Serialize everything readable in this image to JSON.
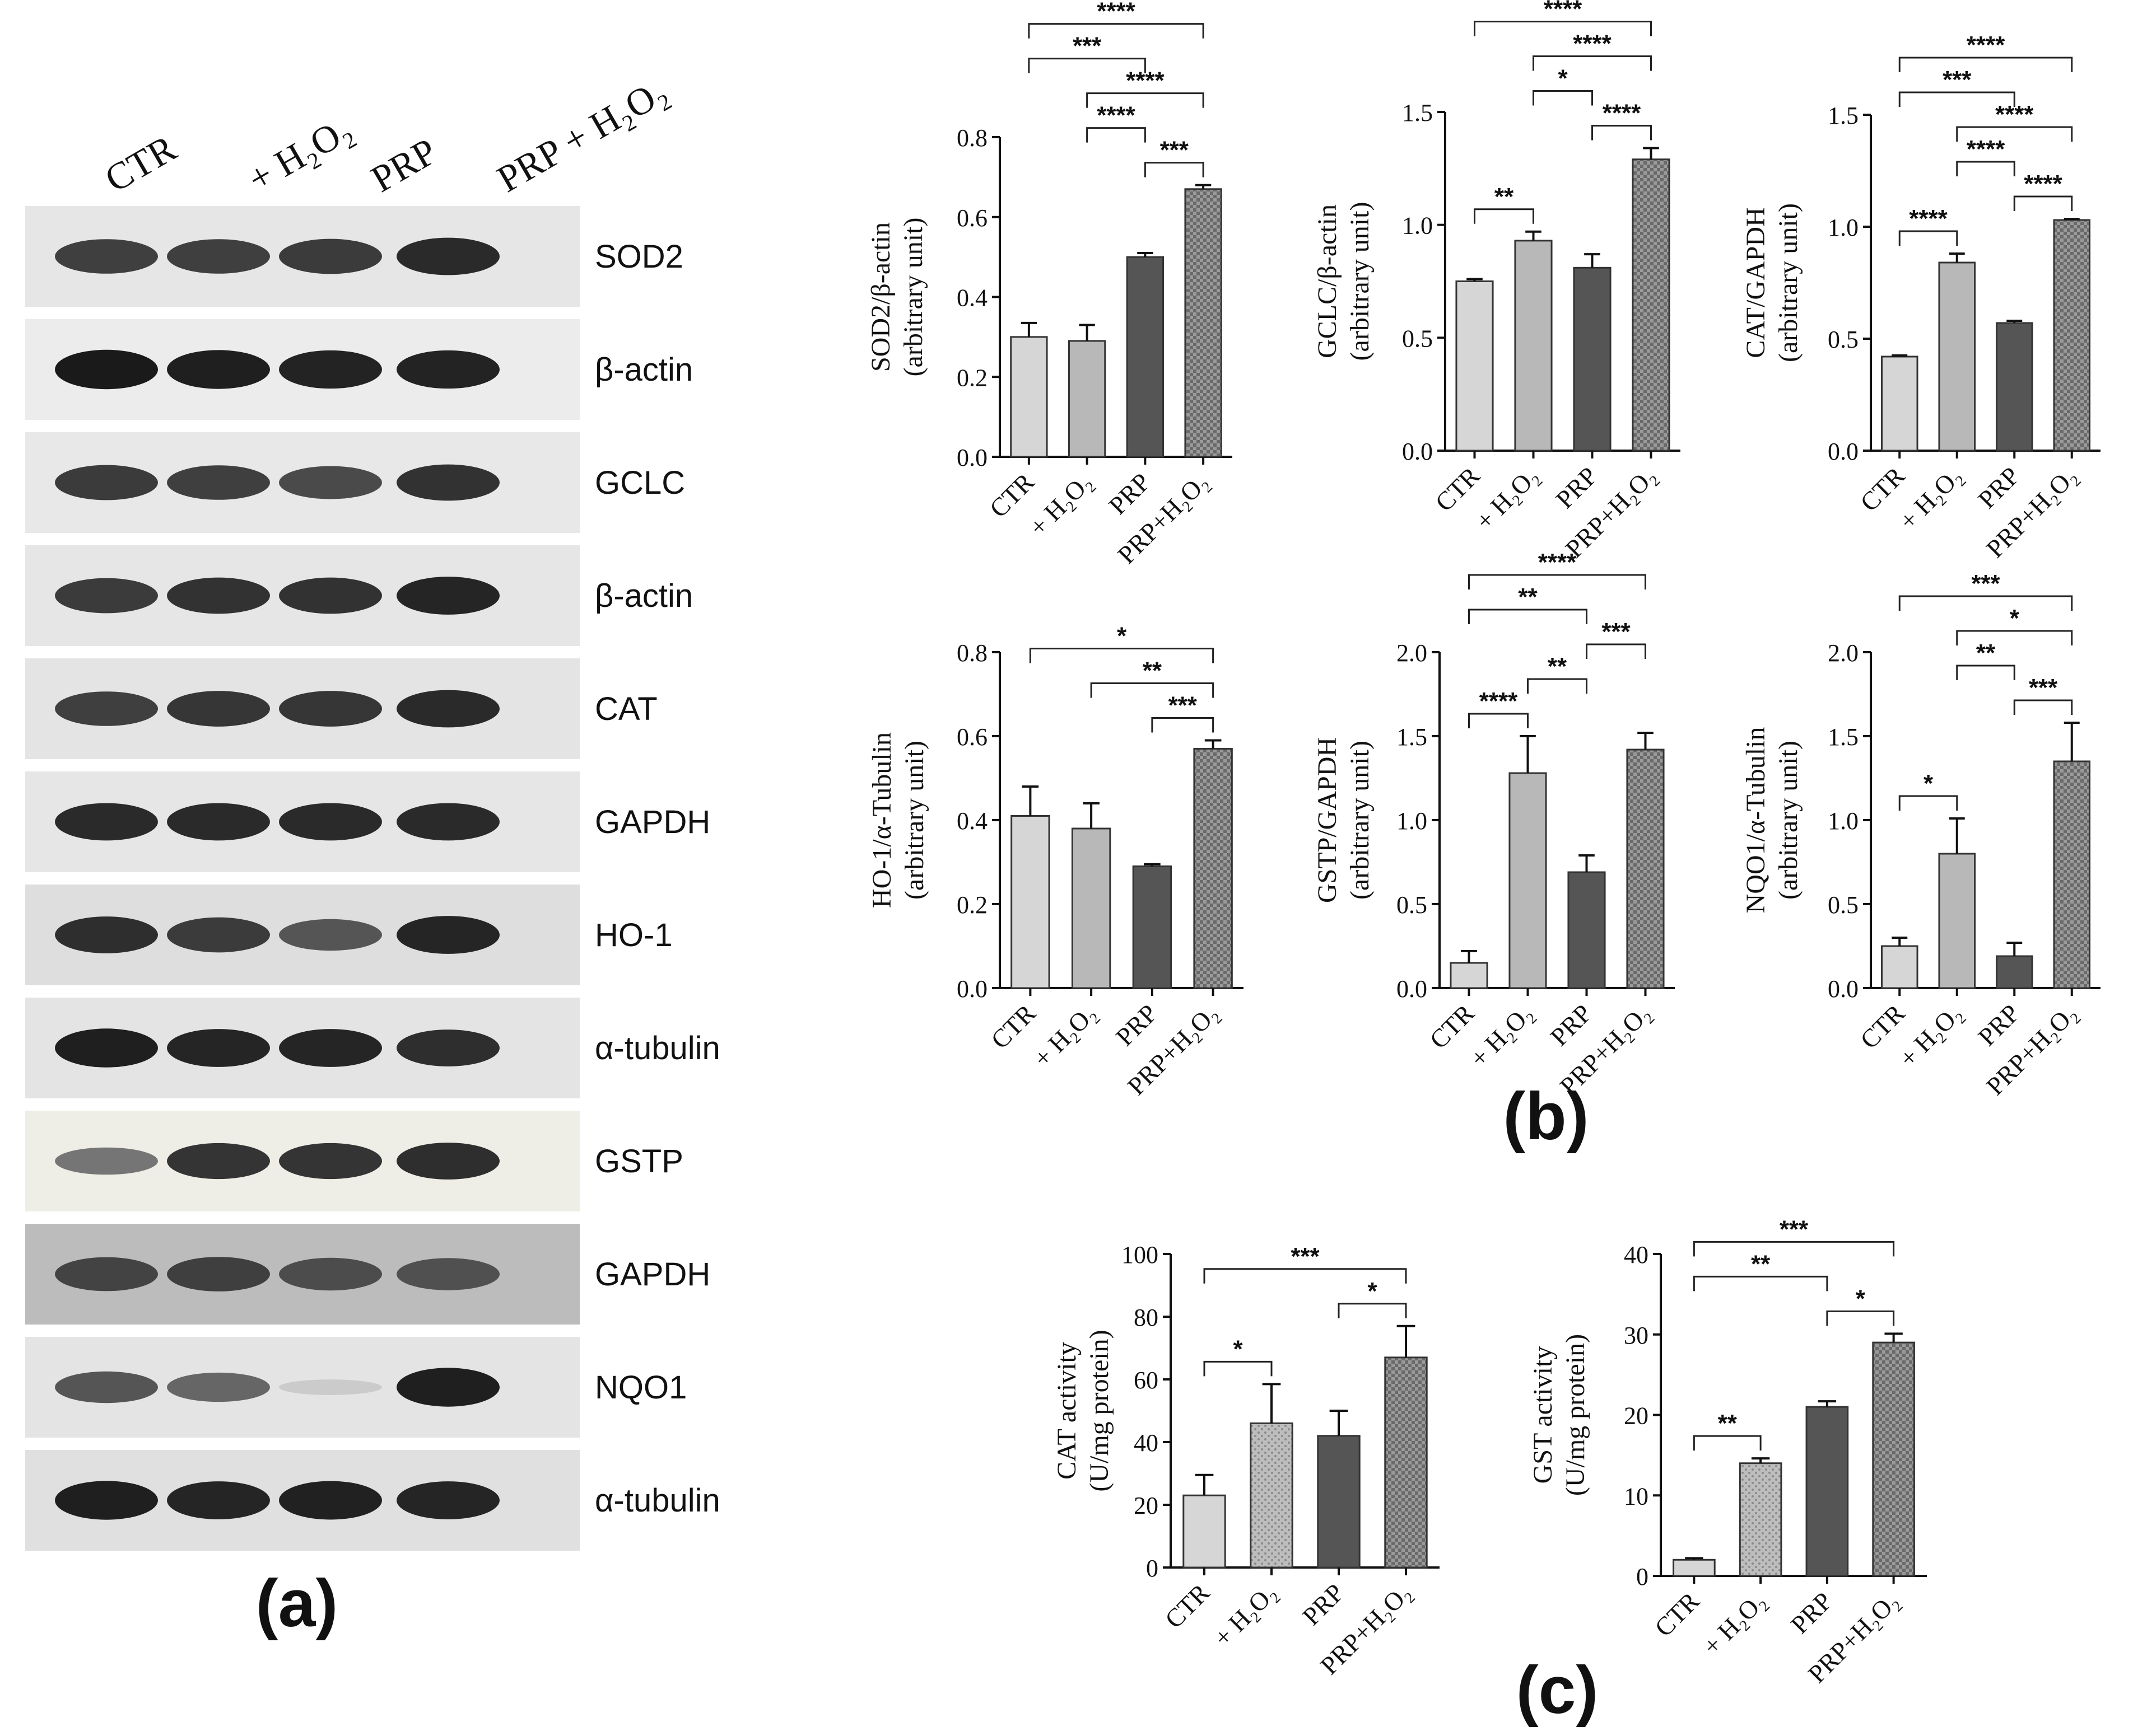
{
  "panel_labels": {
    "a": "(a)",
    "b": "(b)",
    "c": "(c)"
  },
  "blot": {
    "lanes": [
      "CTR",
      "+ H₂O₂",
      "PRP",
      "PRP + H₂O₂"
    ],
    "rows": [
      {
        "label": "SOD2",
        "intensity": [
          0.8,
          0.8,
          0.82,
          0.9
        ]
      },
      {
        "label": "β-actin",
        "intensity": [
          0.97,
          0.95,
          0.93,
          0.93
        ]
      },
      {
        "label": "GCLC",
        "intensity": [
          0.82,
          0.8,
          0.75,
          0.86
        ]
      },
      {
        "label": "β-actin",
        "intensity": [
          0.82,
          0.86,
          0.86,
          0.92
        ]
      },
      {
        "label": "CAT",
        "intensity": [
          0.8,
          0.84,
          0.84,
          0.9
        ]
      },
      {
        "label": "GAPDH",
        "intensity": [
          0.9,
          0.9,
          0.9,
          0.9
        ]
      },
      {
        "label": "HO-1",
        "intensity": [
          0.88,
          0.82,
          0.7,
          0.92
        ]
      },
      {
        "label": "α-tubulin",
        "intensity": [
          0.95,
          0.92,
          0.92,
          0.88
        ]
      },
      {
        "label": "GSTP",
        "intensity": [
          0.55,
          0.85,
          0.85,
          0.88
        ]
      },
      {
        "label": "GAPDH",
        "intensity": [
          0.78,
          0.8,
          0.74,
          0.72
        ]
      },
      {
        "label": "NQO1",
        "intensity": [
          0.7,
          0.62,
          0.15,
          0.95
        ]
      },
      {
        "label": "α-tubulin",
        "intensity": [
          0.95,
          0.92,
          0.94,
          0.92
        ]
      }
    ],
    "row_background": [
      "#e6e6e6",
      "#ececec",
      "#e8e8e8",
      "#e6e6e6",
      "#e4e4e4",
      "#e6e6e6",
      "#dedede",
      "#e4e4e4",
      "#eeeee6",
      "#bcbcbc",
      "#e4e4e4",
      "#e0e0e0"
    ]
  },
  "colors": {
    "bar_fills": [
      "#d6d6d6",
      "#b8b8b8",
      "#555555",
      "#777777"
    ],
    "bar_stroke": "#333333",
    "text": "#111111"
  },
  "chart_data": [
    {
      "type": "bar",
      "id": "sod2",
      "categories": [
        "CTR",
        "+ H₂O₂",
        "PRP",
        "PRP+H₂O₂"
      ],
      "values": [
        0.3,
        0.29,
        0.5,
        0.67
      ],
      "errors": [
        0.035,
        0.04,
        0.01,
        0.01
      ],
      "ylabel": [
        "SOD2/β-actin",
        "(arbitrary unit)"
      ],
      "ylim": [
        0,
        0.8
      ],
      "yticks": [
        0.0,
        0.2,
        0.4,
        0.6,
        0.8
      ],
      "tick_labels": [
        "0.0",
        "0.2",
        "0.4",
        "0.6",
        "0.8"
      ],
      "brackets": [
        {
          "from": 0,
          "to": 3,
          "label": "****"
        },
        {
          "from": 1,
          "to": 3,
          "label": "****"
        },
        {
          "from": 0,
          "to": 2,
          "label": "***"
        },
        {
          "from": 2,
          "to": 3,
          "label": "***"
        },
        {
          "from": 1,
          "to": 2,
          "label": "****"
        }
      ]
    },
    {
      "type": "bar",
      "id": "gclc",
      "categories": [
        "CTR",
        "+ H₂O₂",
        "PRP",
        "PRP+H₂O₂"
      ],
      "values": [
        0.75,
        0.93,
        0.81,
        1.29
      ],
      "errors": [
        0.01,
        0.04,
        0.06,
        0.05
      ],
      "ylabel": [
        "GCLC/β-actin",
        "(arbitrary unit)"
      ],
      "ylim": [
        0,
        1.5
      ],
      "yticks": [
        0.0,
        0.5,
        1.0,
        1.5
      ],
      "tick_labels": [
        "0.0",
        "0.5",
        "1.0",
        "1.5"
      ],
      "brackets": [
        {
          "from": 0,
          "to": 3,
          "label": "****"
        },
        {
          "from": 1,
          "to": 3,
          "label": "****"
        },
        {
          "from": 2,
          "to": 3,
          "label": "****"
        },
        {
          "from": 0,
          "to": 1,
          "label": "**"
        },
        {
          "from": 1,
          "to": 2,
          "label": "*"
        }
      ]
    },
    {
      "type": "bar",
      "id": "cat",
      "categories": [
        "CTR",
        "+ H₂O₂",
        "PRP",
        "PRP+H₂O₂"
      ],
      "values": [
        0.42,
        0.84,
        0.57,
        1.03
      ],
      "errors": [
        0.005,
        0.04,
        0.01,
        0.005
      ],
      "ylabel": [
        "CAT/GAPDH",
        "(arbitrary unit)"
      ],
      "ylim": [
        0,
        1.5
      ],
      "yticks": [
        0.0,
        0.5,
        1.0,
        1.5
      ],
      "tick_labels": [
        "0.0",
        "0.5",
        "1.0",
        "1.5"
      ],
      "brackets": [
        {
          "from": 0,
          "to": 3,
          "label": "****"
        },
        {
          "from": 1,
          "to": 3,
          "label": "****"
        },
        {
          "from": 0,
          "to": 2,
          "label": "***"
        },
        {
          "from": 2,
          "to": 3,
          "label": "****"
        },
        {
          "from": 0,
          "to": 1,
          "label": "****"
        },
        {
          "from": 1,
          "to": 2,
          "label": "****"
        }
      ]
    },
    {
      "type": "bar",
      "id": "ho1",
      "categories": [
        "CTR",
        "+ H₂O₂",
        "PRP",
        "PRP+H₂O₂"
      ],
      "values": [
        0.41,
        0.38,
        0.29,
        0.57
      ],
      "errors": [
        0.07,
        0.06,
        0.005,
        0.02
      ],
      "ylabel": [
        "HO-1/α-Tubulin",
        "(arbitrary unit)"
      ],
      "ylim": [
        0,
        0.8
      ],
      "yticks": [
        0.0,
        0.2,
        0.4,
        0.6,
        0.8
      ],
      "tick_labels": [
        "0.0",
        "0.2",
        "0.4",
        "0.6",
        "0.8"
      ],
      "brackets": [
        {
          "from": 0,
          "to": 3,
          "label": "*"
        },
        {
          "from": 1,
          "to": 3,
          "label": "**"
        },
        {
          "from": 2,
          "to": 3,
          "label": "***"
        }
      ]
    },
    {
      "type": "bar",
      "id": "gstp",
      "categories": [
        "CTR",
        "+ H₂O₂",
        "PRP",
        "PRP+H₂O₂"
      ],
      "values": [
        0.15,
        1.28,
        0.69,
        1.42
      ],
      "errors": [
        0.07,
        0.22,
        0.1,
        0.1
      ],
      "ylabel": [
        "GSTP/GAPDH",
        "(arbitrary unit)"
      ],
      "ylim": [
        0,
        2.0
      ],
      "yticks": [
        0.0,
        0.5,
        1.0,
        1.5,
        2.0
      ],
      "tick_labels": [
        "0.0",
        "0.5",
        "1.0",
        "1.5",
        "2.0"
      ],
      "brackets": [
        {
          "from": 0,
          "to": 3,
          "label": "****"
        },
        {
          "from": 0,
          "to": 2,
          "label": "**"
        },
        {
          "from": 0,
          "to": 1,
          "label": "****"
        },
        {
          "from": 1,
          "to": 2,
          "label": "**"
        },
        {
          "from": 2,
          "to": 3,
          "label": "***"
        }
      ]
    },
    {
      "type": "bar",
      "id": "nqo1",
      "categories": [
        "CTR",
        "+ H₂O₂",
        "PRP",
        "PRP+H₂O₂"
      ],
      "values": [
        0.25,
        0.8,
        0.19,
        1.35
      ],
      "errors": [
        0.05,
        0.21,
        0.08,
        0.23
      ],
      "ylabel": [
        "NQO1/α-Tubulin",
        "(arbitrary unit)"
      ],
      "ylim": [
        0,
        2.0
      ],
      "yticks": [
        0.0,
        0.5,
        1.0,
        1.5,
        2.0
      ],
      "tick_labels": [
        "0.0",
        "0.5",
        "1.0",
        "1.5",
        "2.0"
      ],
      "brackets": [
        {
          "from": 0,
          "to": 3,
          "label": "***"
        },
        {
          "from": 1,
          "to": 3,
          "label": "*"
        },
        {
          "from": 2,
          "to": 3,
          "label": "***"
        },
        {
          "from": 0,
          "to": 1,
          "label": "*"
        },
        {
          "from": 1,
          "to": 2,
          "label": "**"
        }
      ]
    },
    {
      "type": "bar",
      "id": "cat_activity",
      "categories": [
        "CTR",
        "+ H₂O₂",
        "PRP",
        "PRP+H₂O₂"
      ],
      "values": [
        23,
        46,
        42,
        67
      ],
      "errors": [
        6.5,
        12.5,
        8,
        10
      ],
      "ylabel": [
        "CAT activity",
        "(U/mg protein)"
      ],
      "ylim": [
        0,
        100
      ],
      "yticks": [
        0,
        20,
        40,
        60,
        80,
        100
      ],
      "tick_labels": [
        "0",
        "20",
        "40",
        "60",
        "80",
        "100"
      ],
      "brackets": [
        {
          "from": 0,
          "to": 3,
          "label": "***"
        },
        {
          "from": 0,
          "to": 1,
          "label": "*"
        },
        {
          "from": 2,
          "to": 3,
          "label": "*"
        }
      ]
    },
    {
      "type": "bar",
      "id": "gst_activity",
      "categories": [
        "CTR",
        "+ H₂O₂",
        "PRP",
        "PRP+H₂O₂"
      ],
      "values": [
        2,
        14,
        21,
        29
      ],
      "errors": [
        0.2,
        0.6,
        0.7,
        1.1
      ],
      "ylabel": [
        "GST activity",
        "(U/mg protein)"
      ],
      "ylim": [
        0,
        40
      ],
      "yticks": [
        0,
        10,
        20,
        30,
        40
      ],
      "tick_labels": [
        "0",
        "10",
        "20",
        "30",
        "40"
      ],
      "brackets": [
        {
          "from": 0,
          "to": 3,
          "label": "***"
        },
        {
          "from": 2,
          "to": 3,
          "label": "*"
        },
        {
          "from": 0,
          "to": 2,
          "label": "**"
        },
        {
          "from": 0,
          "to": 1,
          "label": "**"
        }
      ]
    }
  ]
}
